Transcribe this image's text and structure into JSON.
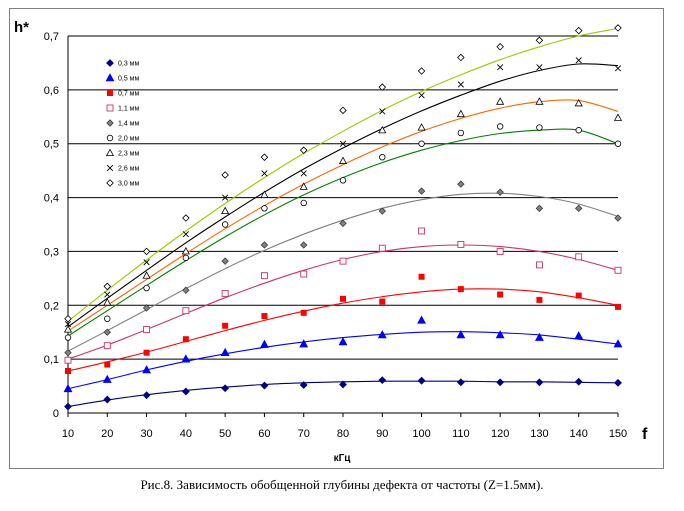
{
  "caption": "Рис.8. Зависимость обобщенной глубины дефекта от частоты (Z=1.5мм).",
  "chart_data": {
    "type": "scatter",
    "ylabel": "h*",
    "xlabel_letter": "f",
    "xunit": "кГц",
    "xlim": [
      10,
      150
    ],
    "ylim": [
      0,
      0.7
    ],
    "xticks": [
      10,
      20,
      30,
      40,
      50,
      60,
      70,
      80,
      90,
      100,
      110,
      120,
      130,
      140,
      150
    ],
    "yticks": [
      "0",
      "0,1",
      "0,2",
      "0,3",
      "0,4",
      "0,5",
      "0,6",
      "0,7"
    ],
    "grid": "horizontal",
    "legend_position": "top-left",
    "x": [
      10,
      20,
      30,
      40,
      50,
      60,
      70,
      80,
      90,
      100,
      110,
      120,
      130,
      140,
      150
    ],
    "series": [
      {
        "name": "0,3 мм",
        "marker": "diamond-filled",
        "color": "#000080",
        "values": [
          0.012,
          0.025,
          0.033,
          0.04,
          0.046,
          0.051,
          0.052,
          0.053,
          0.061,
          0.06,
          0.057,
          0.057,
          0.057,
          0.058,
          0.056
        ],
        "fit": [
          0.012,
          0.024,
          0.034,
          0.042,
          0.048,
          0.053,
          0.056,
          0.058,
          0.059,
          0.059,
          0.059,
          0.058,
          0.058,
          0.057,
          0.056
        ]
      },
      {
        "name": "0,5 мм",
        "marker": "triangle-filled",
        "color": "#0000ff",
        "values": [
          0.045,
          0.062,
          0.08,
          0.1,
          0.112,
          0.127,
          0.128,
          0.132,
          0.145,
          0.172,
          0.145,
          0.145,
          0.14,
          0.143,
          0.128
        ],
        "fit": [
          0.045,
          0.062,
          0.08,
          0.096,
          0.11,
          0.122,
          0.132,
          0.14,
          0.146,
          0.15,
          0.151,
          0.149,
          0.145,
          0.137,
          0.128
        ]
      },
      {
        "name": "0,7 мм",
        "marker": "square-filled",
        "color": "#ff0000",
        "values": [
          0.078,
          0.09,
          0.112,
          0.137,
          0.162,
          0.18,
          0.186,
          0.212,
          0.207,
          0.253,
          0.23,
          0.22,
          0.21,
          0.218,
          0.197
        ],
        "fit": [
          0.078,
          0.095,
          0.113,
          0.133,
          0.153,
          0.172,
          0.189,
          0.204,
          0.216,
          0.225,
          0.23,
          0.23,
          0.225,
          0.214,
          0.2
        ]
      },
      {
        "name": "1,1 мм",
        "marker": "square-open",
        "color": "#cc3366",
        "values": [
          0.098,
          0.125,
          0.155,
          0.19,
          0.222,
          0.255,
          0.258,
          0.282,
          0.306,
          0.338,
          0.313,
          0.3,
          0.275,
          0.29,
          0.265
        ],
        "fit": [
          0.1,
          0.126,
          0.155,
          0.185,
          0.214,
          0.241,
          0.265,
          0.285,
          0.3,
          0.309,
          0.312,
          0.309,
          0.3,
          0.285,
          0.265
        ]
      },
      {
        "name": "1,4 мм",
        "marker": "diamond-grey",
        "color": "#808080",
        "values": [
          0.112,
          0.15,
          0.195,
          0.228,
          0.282,
          0.312,
          0.312,
          0.352,
          0.375,
          0.412,
          0.425,
          0.41,
          0.38,
          0.38,
          0.362
        ],
        "fit": [
          0.115,
          0.153,
          0.192,
          0.231,
          0.268,
          0.302,
          0.332,
          0.358,
          0.38,
          0.396,
          0.406,
          0.408,
          0.402,
          0.388,
          0.365
        ]
      },
      {
        "name": "2,0 мм",
        "marker": "circle-open",
        "color": "#008000",
        "values": [
          0.14,
          0.175,
          0.232,
          0.288,
          0.35,
          0.38,
          0.39,
          0.432,
          0.475,
          0.5,
          0.52,
          0.532,
          0.53,
          0.525,
          0.5
        ],
        "fit": [
          0.143,
          0.19,
          0.237,
          0.283,
          0.327,
          0.368,
          0.405,
          0.437,
          0.465,
          0.488,
          0.506,
          0.519,
          0.525,
          0.525,
          0.5
        ]
      },
      {
        "name": "2,3 мм",
        "marker": "triangle-open",
        "color": "#ff6600",
        "values": [
          0.155,
          0.205,
          0.255,
          0.3,
          0.375,
          0.405,
          0.42,
          0.468,
          0.525,
          0.53,
          0.555,
          0.578,
          0.578,
          0.575,
          0.548
        ],
        "fit": [
          0.152,
          0.2,
          0.248,
          0.296,
          0.342,
          0.385,
          0.425,
          0.461,
          0.494,
          0.523,
          0.547,
          0.566,
          0.578,
          0.58,
          0.56
        ]
      },
      {
        "name": "2,6 мм",
        "marker": "cross",
        "color": "#000000",
        "values": [
          0.165,
          0.22,
          0.28,
          0.332,
          0.4,
          0.445,
          0.445,
          0.5,
          0.56,
          0.59,
          0.61,
          0.642,
          0.642,
          0.655,
          0.64
        ],
        "fit": [
          0.16,
          0.213,
          0.265,
          0.316,
          0.364,
          0.41,
          0.453,
          0.492,
          0.528,
          0.561,
          0.59,
          0.616,
          0.636,
          0.648,
          0.645
        ]
      },
      {
        "name": "3,0 мм",
        "marker": "diamond-open",
        "color": "#99cc00",
        "values": [
          0.175,
          0.235,
          0.3,
          0.362,
          0.442,
          0.475,
          0.488,
          0.562,
          0.605,
          0.635,
          0.66,
          0.68,
          0.692,
          0.71,
          0.715
        ],
        "fit": [
          0.17,
          0.228,
          0.284,
          0.338,
          0.389,
          0.437,
          0.482,
          0.523,
          0.562,
          0.597,
          0.628,
          0.656,
          0.68,
          0.7,
          0.714
        ]
      }
    ]
  }
}
